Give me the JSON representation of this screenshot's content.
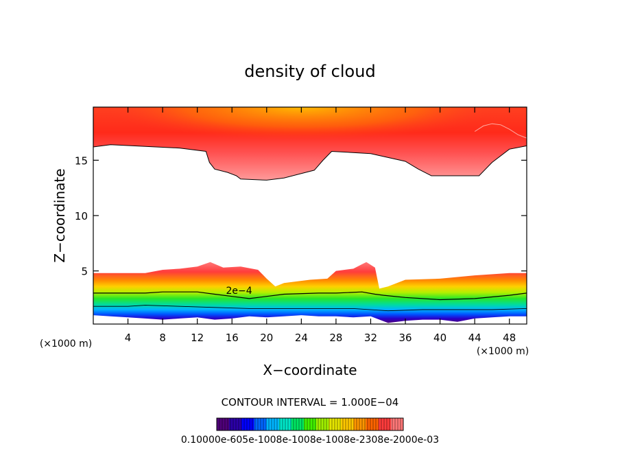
{
  "chart_data": {
    "type": "contour",
    "title": "density of cloud",
    "xlabel": "X−coordinate",
    "ylabel": "Z−coordinate",
    "x_unit": "(×1000 m)",
    "y_unit": "(×1000 m)",
    "xlim": [
      0,
      50
    ],
    "ylim": [
      0.2,
      19.8
    ],
    "x_ticks": [
      4,
      8,
      12,
      16,
      20,
      24,
      28,
      32,
      36,
      40,
      44,
      48
    ],
    "y_ticks": [
      5,
      10,
      15
    ],
    "contour_interval_label": "CONTOUR INTERVAL = 1.000E−04",
    "contour_labels": [
      {
        "text": "2e−4",
        "x": 14.6,
        "z": 2.8
      }
    ],
    "colorbar": {
      "label_text": "0.10000e-605e-1008e-1008e-1008e-2308e-2000e-03",
      "min": 0.0001,
      "max": 0.001,
      "colors": [
        "#50007a",
        "#2b00a8",
        "#0000ff",
        "#0066ff",
        "#00b4ff",
        "#00e6c8",
        "#00e664",
        "#40f000",
        "#a0f000",
        "#e6e600",
        "#ffc800",
        "#ff9600",
        "#ff6400",
        "#ff3c3c",
        "#ff7878"
      ]
    },
    "upper_layer": {
      "top": 19.8,
      "base": [
        [
          0,
          16.2
        ],
        [
          2,
          16.4
        ],
        [
          10,
          16.1
        ],
        [
          13,
          15.8
        ],
        [
          13.4,
          14.8
        ],
        [
          14,
          14.2
        ],
        [
          15.5,
          13.9
        ],
        [
          16.5,
          13.6
        ],
        [
          17,
          13.3
        ],
        [
          20,
          13.2
        ],
        [
          22,
          13.4
        ],
        [
          25.5,
          14.1
        ],
        [
          26.5,
          15.0
        ],
        [
          27.5,
          15.8
        ],
        [
          32,
          15.6
        ],
        [
          36,
          14.9
        ],
        [
          37.5,
          14.2
        ],
        [
          39,
          13.6
        ],
        [
          44.5,
          13.6
        ],
        [
          46,
          14.8
        ],
        [
          48,
          16.0
        ],
        [
          50,
          16.3
        ]
      ],
      "cloud_top_contour": [
        [
          44,
          17.6
        ],
        [
          45,
          18.1
        ],
        [
          46,
          18.3
        ],
        [
          47,
          18.2
        ],
        [
          48,
          17.8
        ],
        [
          49,
          17.3
        ],
        [
          50,
          17.0
        ]
      ]
    },
    "lower_layer": {
      "top": [
        [
          0,
          4.8
        ],
        [
          6,
          4.8
        ],
        [
          8,
          5.1
        ],
        [
          10,
          5.2
        ],
        [
          12,
          5.4
        ],
        [
          13.5,
          5.8
        ],
        [
          15,
          5.3
        ],
        [
          17,
          5.4
        ],
        [
          19,
          5.1
        ],
        [
          20,
          4.3
        ],
        [
          21,
          3.6
        ],
        [
          22,
          3.9
        ],
        [
          25,
          4.2
        ],
        [
          27,
          4.3
        ],
        [
          28,
          5.0
        ],
        [
          30,
          5.2
        ],
        [
          31,
          5.6
        ],
        [
          31.5,
          5.8
        ],
        [
          32.5,
          5.3
        ],
        [
          33,
          3.4
        ],
        [
          34,
          3.6
        ],
        [
          36,
          4.2
        ],
        [
          40,
          4.3
        ],
        [
          44,
          4.6
        ],
        [
          48,
          4.8
        ],
        [
          50,
          4.8
        ]
      ],
      "contour_2e4": [
        [
          0,
          3.0
        ],
        [
          6,
          3.0
        ],
        [
          8,
          3.1
        ],
        [
          12,
          3.1
        ],
        [
          14,
          2.9
        ],
        [
          16,
          2.7
        ],
        [
          18,
          2.5
        ],
        [
          20,
          2.7
        ],
        [
          22,
          2.9
        ],
        [
          26,
          3.0
        ],
        [
          28,
          3.0
        ],
        [
          31,
          3.1
        ],
        [
          32.5,
          2.9
        ],
        [
          33.5,
          2.8
        ],
        [
          36,
          2.6
        ],
        [
          40,
          2.4
        ],
        [
          44,
          2.5
        ],
        [
          48,
          2.8
        ],
        [
          50,
          3.0
        ]
      ],
      "contour_low": [
        [
          0,
          1.8
        ],
        [
          4,
          1.8
        ],
        [
          6,
          1.9
        ],
        [
          10,
          1.8
        ],
        [
          14,
          1.7
        ],
        [
          18,
          1.6
        ],
        [
          22,
          1.6
        ],
        [
          26,
          1.6
        ],
        [
          30,
          1.6
        ],
        [
          34,
          1.4
        ],
        [
          38,
          1.5
        ],
        [
          42,
          1.5
        ],
        [
          46,
          1.5
        ],
        [
          50,
          1.6
        ]
      ],
      "base": [
        [
          0,
          1.0
        ],
        [
          2,
          0.9
        ],
        [
          4,
          0.8
        ],
        [
          6,
          0.7
        ],
        [
          8,
          0.6
        ],
        [
          10,
          0.7
        ],
        [
          12,
          0.8
        ],
        [
          14,
          0.6
        ],
        [
          16,
          0.7
        ],
        [
          18,
          0.9
        ],
        [
          20,
          0.8
        ],
        [
          22,
          0.9
        ],
        [
          24,
          1.0
        ],
        [
          26,
          0.9
        ],
        [
          28,
          0.9
        ],
        [
          30,
          0.8
        ],
        [
          32,
          0.9
        ],
        [
          34,
          0.3
        ],
        [
          36,
          0.5
        ],
        [
          38,
          0.6
        ],
        [
          40,
          0.6
        ],
        [
          42,
          0.4
        ],
        [
          44,
          0.7
        ],
        [
          46,
          0.8
        ],
        [
          48,
          0.9
        ],
        [
          50,
          0.9
        ]
      ]
    }
  }
}
